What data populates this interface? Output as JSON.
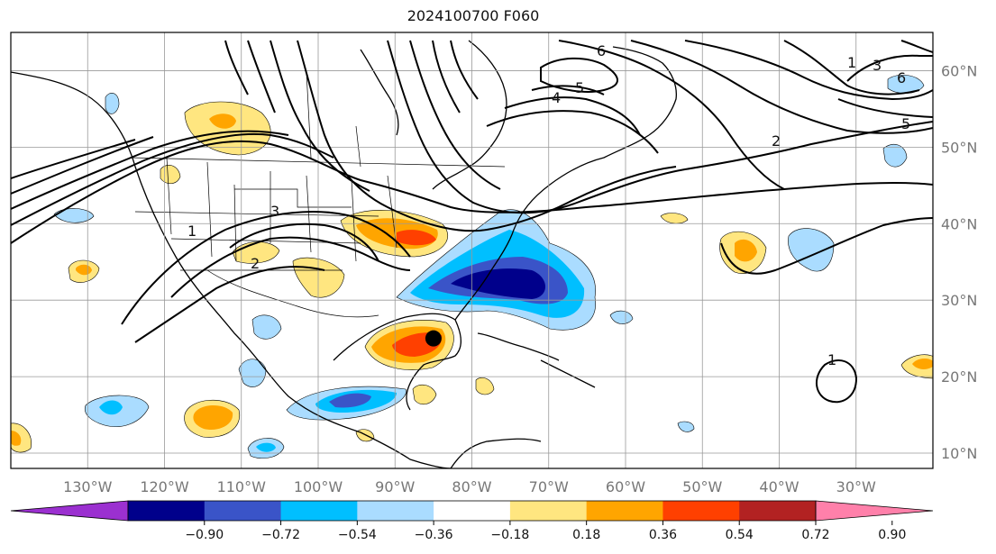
{
  "title": "2024100700 F060",
  "map": {
    "lon_range": [
      -140,
      -20
    ],
    "lat_range": [
      8,
      65
    ],
    "lat_labels": [
      "10°N",
      "20°N",
      "30°N",
      "40°N",
      "50°N",
      "60°N"
    ],
    "lon_labels": [
      "130°W",
      "120°W",
      "110°W",
      "100°W",
      "90°W",
      "80°W",
      "70°W",
      "60°W",
      "50°W",
      "40°W",
      "30°W"
    ],
    "marker": {
      "lon": -85,
      "lat": 25
    }
  },
  "colorbar": {
    "ticks": [
      "−0.90",
      "−0.72",
      "−0.54",
      "−0.36",
      "−0.18",
      "0.18",
      "0.36",
      "0.54",
      "0.72",
      "0.90"
    ],
    "colors": [
      "#9b30d0",
      "#00008b",
      "#3a54c8",
      "#00bfff",
      "#aadcff",
      "#ffffff",
      "#ffe680",
      "#ffa500",
      "#ff4000",
      "#b22222",
      "#ff80aa"
    ]
  },
  "contour_labels": [
    "1",
    "2",
    "3",
    "4",
    "5",
    "6"
  ]
}
